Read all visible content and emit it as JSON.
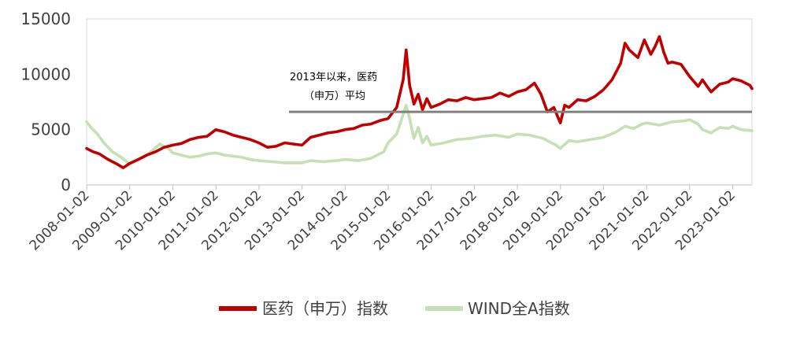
{
  "colors": {
    "series_pharma": "#C00000",
    "series_wind": "#C5E0B4",
    "avg_line": "#808080",
    "axis": "#BFBFBF",
    "text": "#404040"
  },
  "chart_data": {
    "type": "line",
    "title": "",
    "xlabel": "",
    "ylabel": "",
    "ylim": [
      0,
      15000
    ],
    "yticks": [
      "0",
      "5000",
      "10000",
      "15000"
    ],
    "xticks": [
      "2008-01-02",
      "2009-01-02",
      "2010-01-02",
      "2011-01-02",
      "2012-01-02",
      "2013-01-02",
      "2014-01-02",
      "2015-01-02",
      "2016-01-02",
      "2017-01-02",
      "2018-01-02",
      "2019-01-02",
      "2020-01-02",
      "2021-01-02",
      "2022-01-02",
      "2023-01-02"
    ],
    "grid": false,
    "legend_position": "bottom",
    "annotation": {
      "line1": "2013年以来，医药",
      "line2": "（申万）平均",
      "avg_value": 6600,
      "avg_start": 2012.7,
      "avg_end": 2023.45
    },
    "series": [
      {
        "name": "医药（申万）指数",
        "x": [
          2008.0,
          2008.15,
          2008.3,
          2008.5,
          2008.7,
          2008.85,
          2009.0,
          2009.2,
          2009.4,
          2009.6,
          2009.8,
          2010.0,
          2010.2,
          2010.4,
          2010.6,
          2010.8,
          2010.9,
          2011.0,
          2011.2,
          2011.4,
          2011.6,
          2011.8,
          2012.0,
          2012.2,
          2012.4,
          2012.6,
          2012.8,
          2013.0,
          2013.2,
          2013.4,
          2013.6,
          2013.8,
          2014.0,
          2014.2,
          2014.4,
          2014.6,
          2014.8,
          2015.0,
          2015.2,
          2015.35,
          2015.42,
          2015.5,
          2015.6,
          2015.7,
          2015.8,
          2015.9,
          2016.0,
          2016.2,
          2016.4,
          2016.6,
          2016.8,
          2017.0,
          2017.2,
          2017.4,
          2017.6,
          2017.8,
          2018.0,
          2018.2,
          2018.4,
          2018.55,
          2018.7,
          2018.85,
          2019.0,
          2019.1,
          2019.2,
          2019.4,
          2019.6,
          2019.8,
          2020.0,
          2020.2,
          2020.4,
          2020.5,
          2020.6,
          2020.8,
          2020.95,
          2021.1,
          2021.2,
          2021.3,
          2021.4,
          2021.5,
          2021.6,
          2021.8,
          2022.0,
          2022.2,
          2022.3,
          2022.5,
          2022.7,
          2022.9,
          2023.0,
          2023.2,
          2023.4,
          2023.45
        ],
        "values": [
          3300,
          3000,
          2800,
          2300,
          1900,
          1550,
          1950,
          2300,
          2700,
          3000,
          3400,
          3600,
          3750,
          4100,
          4300,
          4400,
          4700,
          5000,
          4800,
          4500,
          4300,
          4100,
          3800,
          3400,
          3500,
          3800,
          3700,
          3600,
          4300,
          4500,
          4700,
          4800,
          5000,
          5100,
          5400,
          5500,
          5800,
          6000,
          7000,
          9500,
          12200,
          9000,
          7300,
          8200,
          6800,
          7800,
          7000,
          7300,
          7700,
          7600,
          7900,
          7700,
          7800,
          7900,
          8300,
          8000,
          8400,
          8600,
          9200,
          8200,
          6600,
          7000,
          5600,
          7200,
          7000,
          7700,
          7600,
          8000,
          8600,
          9500,
          11000,
          12800,
          12200,
          11500,
          13100,
          11800,
          12500,
          13400,
          12000,
          11000,
          11100,
          10900,
          9800,
          8900,
          9500,
          8400,
          9100,
          9300,
          9600,
          9400,
          9000,
          8700
        ]
      },
      {
        "name": "WIND全A指数",
        "x": [
          2008.0,
          2008.1,
          2008.25,
          2008.4,
          2008.6,
          2008.8,
          2009.0,
          2009.2,
          2009.4,
          2009.55,
          2009.7,
          2009.8,
          2009.9,
          2010.0,
          2010.2,
          2010.4,
          2010.6,
          2010.8,
          2011.0,
          2011.2,
          2011.4,
          2011.6,
          2011.8,
          2012.0,
          2012.3,
          2012.6,
          2012.9,
          2013.0,
          2013.2,
          2013.5,
          2013.8,
          2014.0,
          2014.3,
          2014.6,
          2014.9,
          2015.0,
          2015.2,
          2015.3,
          2015.42,
          2015.5,
          2015.6,
          2015.7,
          2015.8,
          2015.9,
          2016.0,
          2016.3,
          2016.6,
          2016.9,
          2017.2,
          2017.5,
          2017.8,
          2018.0,
          2018.3,
          2018.6,
          2018.9,
          2019.0,
          2019.2,
          2019.4,
          2019.7,
          2020.0,
          2020.3,
          2020.5,
          2020.7,
          2020.9,
          2021.0,
          2021.3,
          2021.6,
          2021.9,
          2022.0,
          2022.2,
          2022.3,
          2022.5,
          2022.7,
          2022.9,
          2023.0,
          2023.2,
          2023.45
        ],
        "values": [
          5700,
          5200,
          4600,
          3800,
          3000,
          2500,
          1900,
          2300,
          2700,
          3200,
          3700,
          3500,
          3300,
          2900,
          2700,
          2500,
          2600,
          2800,
          2900,
          2700,
          2600,
          2500,
          2300,
          2200,
          2100,
          2000,
          2000,
          2000,
          2200,
          2100,
          2200,
          2300,
          2200,
          2400,
          3000,
          3800,
          4600,
          5800,
          7200,
          6000,
          4200,
          5200,
          3800,
          4400,
          3600,
          3800,
          4100,
          4200,
          4400,
          4500,
          4300,
          4600,
          4500,
          4200,
          3600,
          3300,
          4000,
          3900,
          4100,
          4300,
          4800,
          5300,
          5100,
          5500,
          5600,
          5400,
          5700,
          5800,
          5900,
          5500,
          5000,
          4700,
          5200,
          5100,
          5300,
          5000,
          4900
        ]
      }
    ]
  }
}
